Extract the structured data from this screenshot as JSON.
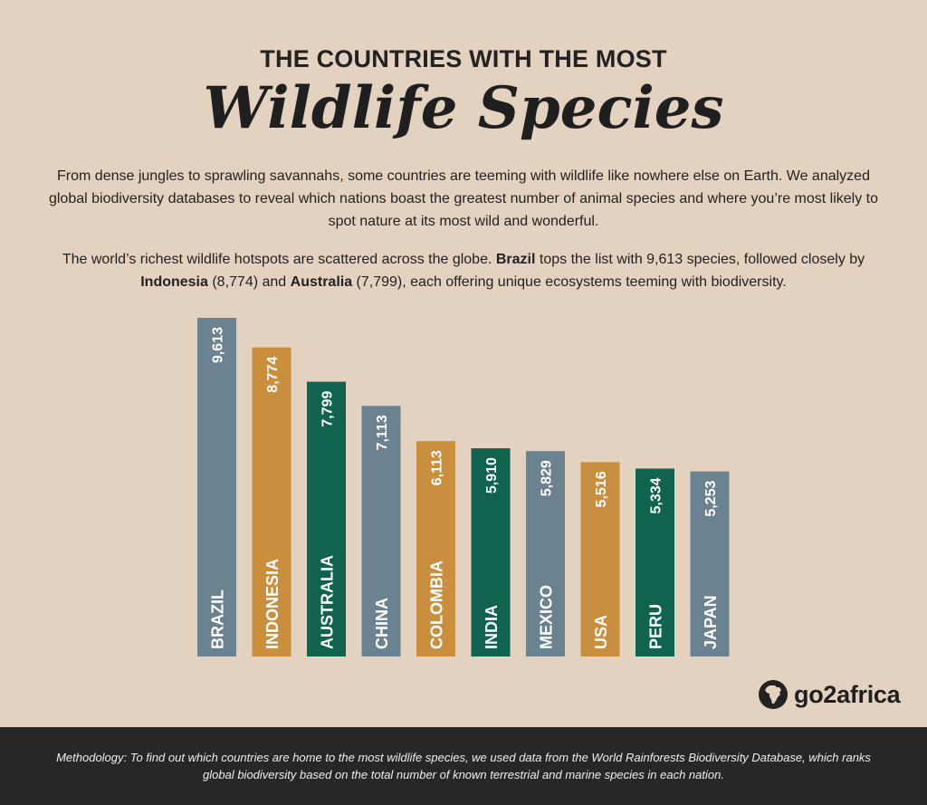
{
  "header": {
    "kicker": "THE COUNTRIES WITH THE MOST",
    "headline": "Wildlife Species"
  },
  "intro": {
    "paragraph1": "From dense jungles to sprawling savannahs, some countries are teeming with wildlife like nowhere else on Earth. We analyzed global biodiversity databases to reveal which nations boast the greatest number of animal species and where you’re most likely to spot nature at its most wild and wonderful.",
    "p2_lead": "The world’s richest wildlife hotspots are scattered across the globe. ",
    "p2_brazil": "Brazil",
    "p2_mid1": " tops the list with 9,613 species, followed closely by ",
    "p2_indonesia": "Indonesia",
    "p2_mid2": " (8,774) and ",
    "p2_australia": "Australia",
    "p2_tail": " (7,799), each offering unique ecosystems teeming with biodiversity."
  },
  "logo": {
    "text": "go2africa",
    "icon": "africa-continent-icon"
  },
  "footer": {
    "methodology": "Methodology: To find out which countries are home to the most wildlife species, we used data from the World Rainforests Biodiversity Database, which ranks global biodiversity based on the total number of known terrestrial and marine species in each nation."
  },
  "colors": {
    "background": "#e3d2bf",
    "slate": "#6b8291",
    "ochre": "#c98f3e",
    "green": "#10634f",
    "footer": "#272727"
  },
  "chart_data": {
    "type": "bar",
    "categories": [
      "BRAZIL",
      "INDONESIA",
      "AUSTRALIA",
      "CHINA",
      "COLOMBIA",
      "INDIA",
      "MEXICO",
      "USA",
      "PERU",
      "JAPAN"
    ],
    "values": [
      9613,
      8774,
      7799,
      7113,
      6113,
      5910,
      5829,
      5516,
      5334,
      5253
    ],
    "value_labels": [
      "9,613",
      "8,774",
      "7,799",
      "7,113",
      "6,113",
      "5,910",
      "5,829",
      "5,516",
      "5,334",
      "5,253"
    ],
    "bar_colors": [
      "#6b8291",
      "#c98f3e",
      "#10634f",
      "#6b8291",
      "#c98f3e",
      "#10634f",
      "#6b8291",
      "#c98f3e",
      "#10634f",
      "#6b8291"
    ],
    "ylim": [
      0,
      9613
    ],
    "title": "",
    "xlabel": "",
    "ylabel": "",
    "grid": false,
    "legend": "none"
  }
}
